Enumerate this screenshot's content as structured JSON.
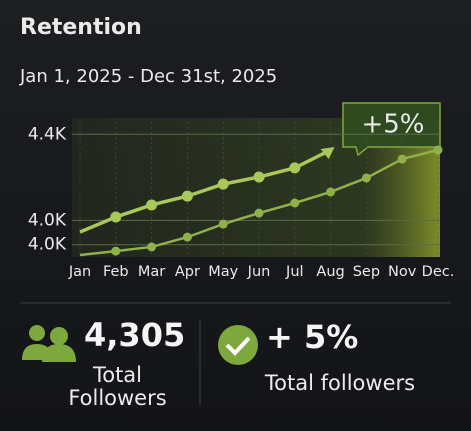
{
  "header": {
    "title": "Retention",
    "date_range": "Jan 1, 2025 - Dec 31st, 2025"
  },
  "chart_data": {
    "type": "line",
    "categories": [
      "Jan",
      "Feb",
      "Mar",
      "Apr",
      "May",
      "Jun",
      "Jul",
      "Aug",
      "Sep",
      "Nov",
      "Dec."
    ],
    "series": [
      {
        "color": "#a8c95a",
        "values": [
          4002,
          4063,
          4112,
          4148,
          4197,
          4226,
          4263,
          4336,
          null,
          null,
          null
        ]
      },
      {
        "color": "#8fb04a",
        "values": [
          3908,
          3924,
          3941,
          3981,
          4034,
          4079,
          4120,
          4165,
          4222,
          4299,
          4336
        ]
      }
    ],
    "ylim": [
      3900,
      4450
    ],
    "yticks": [
      {
        "value": 4400,
        "label": "4.4K"
      },
      {
        "value": 4049,
        "label": "4.0K"
      },
      {
        "value": 3950,
        "label": "4.0K"
      }
    ],
    "grid": true,
    "annotation": "+5%"
  },
  "stats": [
    {
      "value": "4,305",
      "label": "Total Followers"
    },
    {
      "value": "+ 5%",
      "label": "Total followers"
    }
  ]
}
